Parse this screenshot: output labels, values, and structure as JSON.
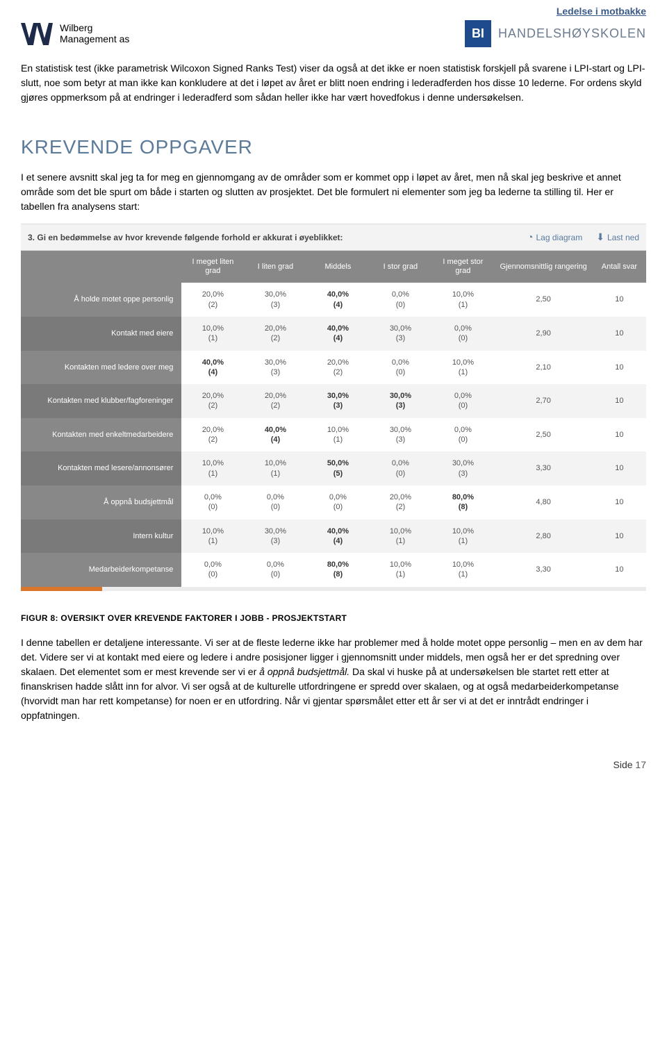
{
  "header": {
    "brand_line": "Ledelse i motbakke",
    "brand_line_color": "#3a5a88",
    "wilberg": {
      "line1": "Wilberg",
      "line2": "Management as"
    },
    "bi": {
      "box": "BI",
      "text": "HANDELSHØYSKOLEN"
    }
  },
  "intro_paragraph": "En statistisk test (ikke parametrisk Wilcoxon Signed Ranks Test) viser da også at det ikke er noen statistisk forskjell på svarene i LPI-start og LPI-slutt, noe som betyr at man ikke kan konkludere at det i løpet av året er blitt noen endring i lederadferden hos disse 10 lederne. For ordens skyld gjøres oppmerksom på at endringer i lederadferd som sådan heller ikke har vært hovedfokus i denne undersøkelsen.",
  "section_title": "KREVENDE OPPGAVER",
  "section_para": "I et senere avsnitt skal jeg ta for meg en gjennomgang av de områder som er kommet opp i løpet av året, men nå skal jeg beskrive et annet område som det ble spurt om både i starten og slutten av prosjektet.  Det ble formulert ni elementer som jeg ba lederne ta stilling til. Her er tabellen fra analysens start:",
  "survey": {
    "question_prefix": "3.",
    "question": "Gi en bedømmelse av hvor krevende følgende forhold er akkurat i øyeblikket:",
    "actions": {
      "chart": "Lag diagram",
      "download": "Last ned"
    },
    "columns": [
      "I meget liten grad",
      "I liten grad",
      "Middels",
      "I stor grad",
      "I meget stor grad",
      "Gjennomsnittlig rangering",
      "Antall svar"
    ],
    "rows": [
      {
        "label": "Å holde motet oppe personlig",
        "cells": [
          {
            "pct": "20,0%",
            "cnt": "(2)"
          },
          {
            "pct": "30,0%",
            "cnt": "(3)"
          },
          {
            "pct": "40,0%",
            "cnt": "(4)",
            "max": true
          },
          {
            "pct": "0,0%",
            "cnt": "(0)"
          },
          {
            "pct": "10,0%",
            "cnt": "(1)"
          }
        ],
        "avg": "2,50",
        "n": "10"
      },
      {
        "label": "Kontakt med eiere",
        "cells": [
          {
            "pct": "10,0%",
            "cnt": "(1)"
          },
          {
            "pct": "20,0%",
            "cnt": "(2)"
          },
          {
            "pct": "40,0%",
            "cnt": "(4)",
            "max": true
          },
          {
            "pct": "30,0%",
            "cnt": "(3)"
          },
          {
            "pct": "0,0%",
            "cnt": "(0)"
          }
        ],
        "avg": "2,90",
        "n": "10"
      },
      {
        "label": "Kontakten med ledere over meg",
        "cells": [
          {
            "pct": "40,0%",
            "cnt": "(4)",
            "max": true
          },
          {
            "pct": "30,0%",
            "cnt": "(3)"
          },
          {
            "pct": "20,0%",
            "cnt": "(2)"
          },
          {
            "pct": "0,0%",
            "cnt": "(0)"
          },
          {
            "pct": "10,0%",
            "cnt": "(1)"
          }
        ],
        "avg": "2,10",
        "n": "10"
      },
      {
        "label": "Kontakten med klubber/fagforeninger",
        "cells": [
          {
            "pct": "20,0%",
            "cnt": "(2)"
          },
          {
            "pct": "20,0%",
            "cnt": "(2)"
          },
          {
            "pct": "30,0%",
            "cnt": "(3)",
            "max": true
          },
          {
            "pct": "30,0%",
            "cnt": "(3)",
            "max": true
          },
          {
            "pct": "0,0%",
            "cnt": "(0)"
          }
        ],
        "avg": "2,70",
        "n": "10"
      },
      {
        "label": "Kontakten med enkeltmedarbeidere",
        "cells": [
          {
            "pct": "20,0%",
            "cnt": "(2)"
          },
          {
            "pct": "40,0%",
            "cnt": "(4)",
            "max": true
          },
          {
            "pct": "10,0%",
            "cnt": "(1)"
          },
          {
            "pct": "30,0%",
            "cnt": "(3)"
          },
          {
            "pct": "0,0%",
            "cnt": "(0)"
          }
        ],
        "avg": "2,50",
        "n": "10"
      },
      {
        "label": "Kontakten med lesere/annonsører",
        "cells": [
          {
            "pct": "10,0%",
            "cnt": "(1)"
          },
          {
            "pct": "10,0%",
            "cnt": "(1)"
          },
          {
            "pct": "50,0%",
            "cnt": "(5)",
            "max": true
          },
          {
            "pct": "0,0%",
            "cnt": "(0)"
          },
          {
            "pct": "30,0%",
            "cnt": "(3)"
          }
        ],
        "avg": "3,30",
        "n": "10"
      },
      {
        "label": "Å oppnå budsjettmål",
        "cells": [
          {
            "pct": "0,0%",
            "cnt": "(0)"
          },
          {
            "pct": "0,0%",
            "cnt": "(0)"
          },
          {
            "pct": "0,0%",
            "cnt": "(0)"
          },
          {
            "pct": "20,0%",
            "cnt": "(2)"
          },
          {
            "pct": "80,0%",
            "cnt": "(8)",
            "max": true
          }
        ],
        "avg": "4,80",
        "n": "10"
      },
      {
        "label": "Intern kultur",
        "cells": [
          {
            "pct": "10,0%",
            "cnt": "(1)"
          },
          {
            "pct": "30,0%",
            "cnt": "(3)"
          },
          {
            "pct": "40,0%",
            "cnt": "(4)",
            "max": true
          },
          {
            "pct": "10,0%",
            "cnt": "(1)"
          },
          {
            "pct": "10,0%",
            "cnt": "(1)"
          }
        ],
        "avg": "2,80",
        "n": "10"
      },
      {
        "label": "Medarbeiderkompetanse",
        "cells": [
          {
            "pct": "0,0%",
            "cnt": "(0)"
          },
          {
            "pct": "0,0%",
            "cnt": "(0)"
          },
          {
            "pct": "80,0%",
            "cnt": "(8)",
            "max": true
          },
          {
            "pct": "10,0%",
            "cnt": "(1)"
          },
          {
            "pct": "10,0%",
            "cnt": "(1)"
          }
        ],
        "avg": "3,30",
        "n": "10"
      }
    ],
    "progress_bar_width_pct": 13,
    "header_bg": "#888888",
    "row_alt_bg": "#f3f3f3",
    "action_color": "#5a7aa0"
  },
  "figure_caption": "FIGUR 8: OVERSIKT OVER KREVENDE FAKTORER I JOBB - PROSJEKTSTART",
  "closing_para_pre": "I denne tabellen er detaljene interessante. Vi ser at de fleste lederne ikke har problemer med å holde motet oppe personlig – men en av dem har det.  Videre ser vi at kontakt med eiere og ledere i andre posisjoner ligger i gjennomsnitt under middels, men også her er det spredning over skalaen.  Det elementet som er mest krevende ser vi er ",
  "closing_para_italic": "å oppnå budsjettmål.",
  "closing_para_post": " Da skal vi huske på at undersøkelsen ble startet rett etter at finanskrisen hadde slått inn for alvor.  Vi ser også at de kulturelle utfordringene er spredd over skalaen, og at også medarbeiderkompetanse (hvorvidt man har rett kompetanse) for noen er en utfordring.   Når vi gjentar spørsmålet etter ett år ser vi at det er inntrådt endringer i oppfatningen.",
  "footer": {
    "side": "Side",
    "page": "17"
  }
}
